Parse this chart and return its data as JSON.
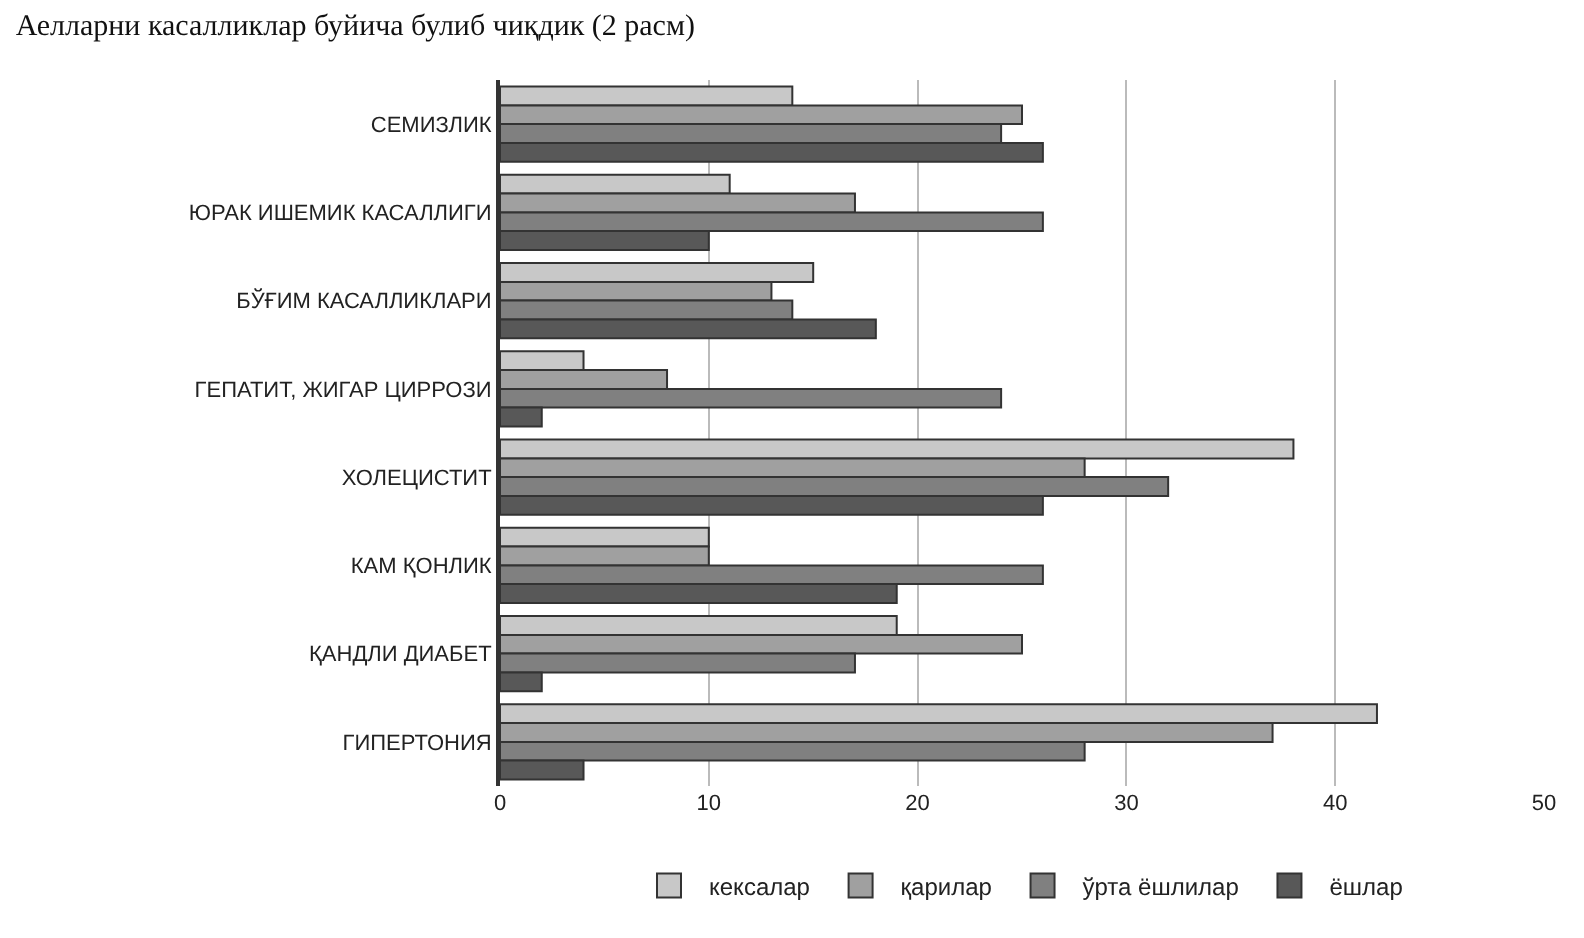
{
  "chart_data": {
    "type": "bar",
    "orientation": "horizontal",
    "title": "Аелларни касалликлар буйича булиб чиқдик (2 расм)",
    "categories": [
      "СЕМИЗЛИК",
      "ЮРАК ИШЕМИК КАСАЛЛИГИ",
      "БЎҒИМ КАСАЛЛИКЛАРИ",
      "ГЕПАТИТ, ЖИГАР ЦИРРОЗИ",
      "ХОЛЕЦИСТИТ",
      "КАМ ҚОНЛИК",
      "ҚАНДЛИ ДИАБЕТ",
      "ГИПЕРТОНИЯ"
    ],
    "series": [
      {
        "name": "кексалар",
        "color": "#c8c8c8",
        "values": [
          14,
          11,
          15,
          4,
          38,
          10,
          19,
          42
        ]
      },
      {
        "name": "қарилар",
        "color": "#a0a0a0",
        "values": [
          25,
          17,
          13,
          8,
          28,
          10,
          25,
          37
        ]
      },
      {
        "name": "ўрта ёшлилар",
        "color": "#808080",
        "values": [
          24,
          26,
          14,
          24,
          32,
          26,
          17,
          28
        ]
      },
      {
        "name": "ёшлар",
        "color": "#585858",
        "values": [
          26,
          10,
          18,
          2,
          26,
          19,
          2,
          4
        ]
      }
    ],
    "xlim": [
      0,
      50
    ],
    "xticks": [
      0,
      10,
      20,
      30,
      40,
      50
    ],
    "grid": "x",
    "legend": "bottom"
  }
}
